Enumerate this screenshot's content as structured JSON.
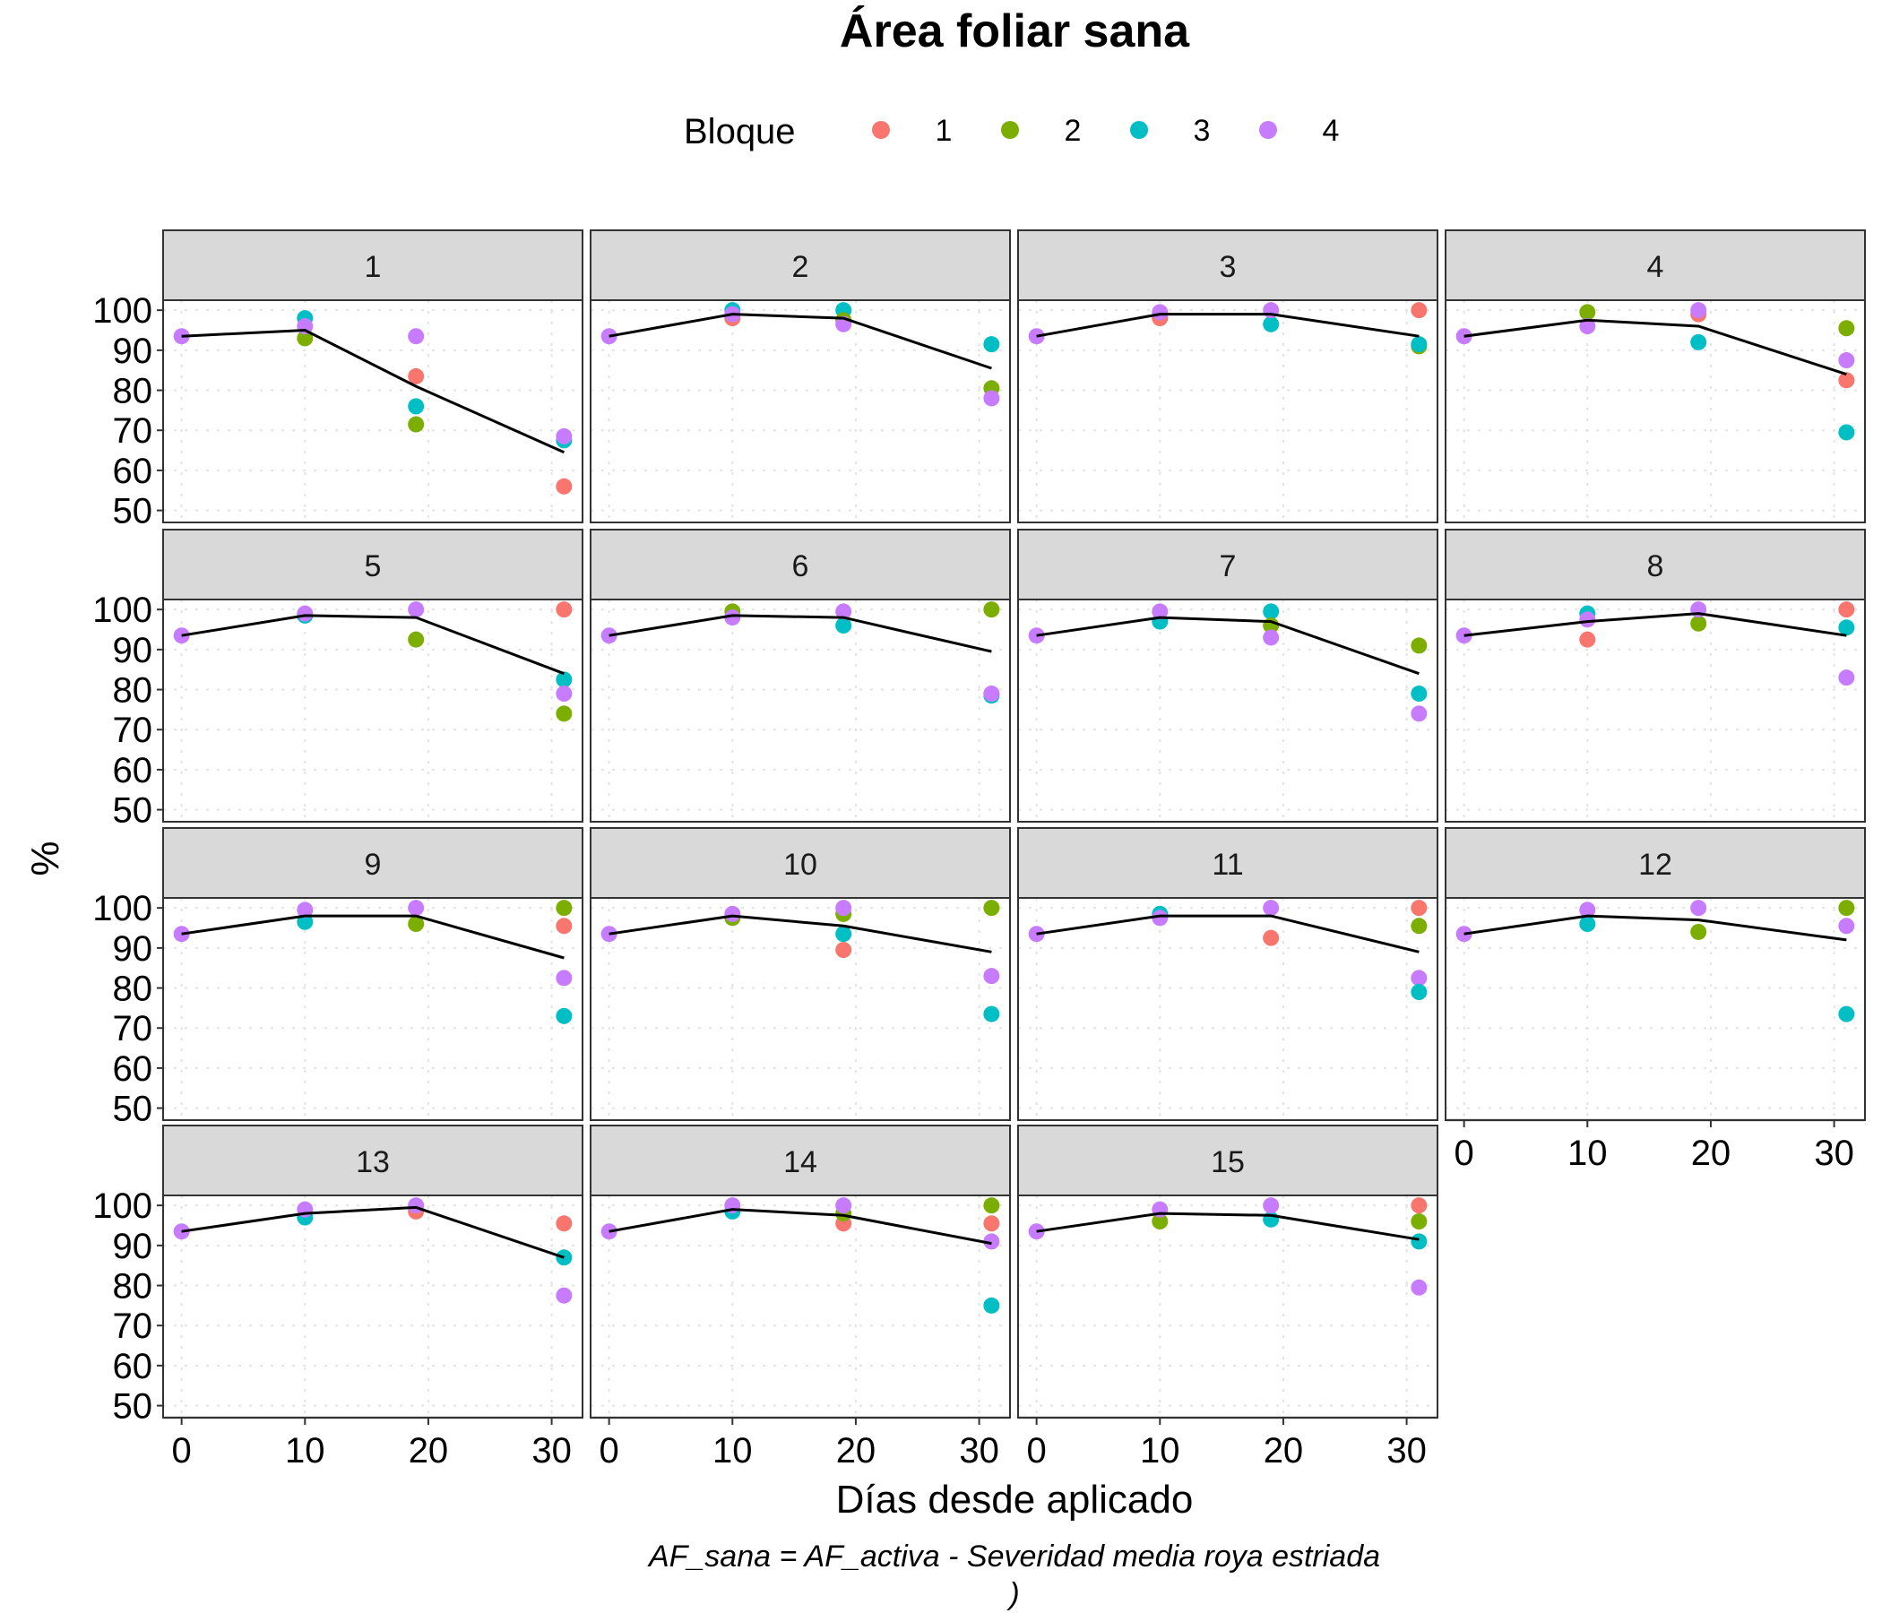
{
  "chart_data": {
    "type": "scatter",
    "title": "Área foliar sana",
    "xlabel": "Días desde aplicado",
    "ylabel": "%",
    "caption_lines": [
      "AF_sana = AF_activa - Severidad media roya estriada",
      ")"
    ],
    "legend": {
      "title": "Bloque",
      "position": "top",
      "entries": [
        {
          "label": "1",
          "color": "#F8766D"
        },
        {
          "label": "2",
          "color": "#7CAE00"
        },
        {
          "label": "3",
          "color": "#00BFC4"
        },
        {
          "label": "4",
          "color": "#C77CFF"
        }
      ]
    },
    "xlim": [
      -1.5,
      32.5
    ],
    "ylim": [
      47,
      102.5
    ],
    "x_ticks": [
      0,
      10,
      20,
      30
    ],
    "y_ticks": [
      50,
      60,
      70,
      80,
      90,
      100
    ],
    "grid": true,
    "trend_line": "mean",
    "facets": [
      {
        "label": "1",
        "points": [
          [
            0,
            93.5,
            4
          ],
          [
            10,
            98,
            3
          ],
          [
            10,
            93,
            2
          ],
          [
            10,
            96,
            4
          ],
          [
            19,
            83.5,
            1
          ],
          [
            19,
            76,
            3
          ],
          [
            19,
            71.5,
            2
          ],
          [
            19,
            93.5,
            4
          ],
          [
            31,
            56,
            1
          ],
          [
            31,
            67.5,
            3
          ],
          [
            31,
            68.5,
            4
          ]
        ],
        "mean": [
          [
            0,
            93.5
          ],
          [
            10,
            95
          ],
          [
            19,
            81
          ],
          [
            31,
            64.5
          ]
        ]
      },
      {
        "label": "2",
        "points": [
          [
            0,
            93.5,
            4
          ],
          [
            10,
            98,
            1
          ],
          [
            10,
            100,
            3
          ],
          [
            10,
            99,
            4
          ],
          [
            19,
            100,
            3
          ],
          [
            19,
            97.5,
            2
          ],
          [
            19,
            96.5,
            4
          ],
          [
            31,
            80.5,
            2
          ],
          [
            31,
            91.5,
            3
          ],
          [
            31,
            78,
            4
          ]
        ],
        "mean": [
          [
            0,
            93.5
          ],
          [
            10,
            99
          ],
          [
            19,
            98
          ],
          [
            31,
            85.5
          ]
        ]
      },
      {
        "label": "3",
        "points": [
          [
            0,
            93.5,
            4
          ],
          [
            10,
            98,
            1
          ],
          [
            10,
            99.5,
            4
          ],
          [
            19,
            96.5,
            3
          ],
          [
            19,
            100,
            4
          ],
          [
            31,
            100,
            1
          ],
          [
            31,
            91,
            2
          ],
          [
            31,
            91.5,
            3
          ]
        ],
        "mean": [
          [
            0,
            93.5
          ],
          [
            10,
            99
          ],
          [
            19,
            99
          ],
          [
            31,
            93.5
          ]
        ]
      },
      {
        "label": "4",
        "points": [
          [
            0,
            93.5,
            4
          ],
          [
            10,
            99.5,
            2
          ],
          [
            10,
            96,
            4
          ],
          [
            19,
            92,
            3
          ],
          [
            19,
            99,
            1
          ],
          [
            19,
            100,
            4
          ],
          [
            31,
            95.5,
            2
          ],
          [
            31,
            82.5,
            1
          ],
          [
            31,
            69.5,
            3
          ],
          [
            31,
            87.5,
            4
          ]
        ],
        "mean": [
          [
            0,
            93.5
          ],
          [
            10,
            97.5
          ],
          [
            19,
            96
          ],
          [
            31,
            84
          ]
        ]
      },
      {
        "label": "5",
        "points": [
          [
            0,
            93.5,
            4
          ],
          [
            10,
            98.5,
            3
          ],
          [
            10,
            99,
            4
          ],
          [
            19,
            92.5,
            2
          ],
          [
            19,
            100,
            4
          ],
          [
            31,
            100,
            1
          ],
          [
            31,
            82.5,
            3
          ],
          [
            31,
            79,
            4
          ],
          [
            31,
            74,
            2
          ]
        ],
        "mean": [
          [
            0,
            93.5
          ],
          [
            10,
            98.5
          ],
          [
            19,
            98
          ],
          [
            31,
            84
          ]
        ]
      },
      {
        "label": "6",
        "points": [
          [
            0,
            93.5,
            4
          ],
          [
            10,
            99.5,
            2
          ],
          [
            10,
            98,
            4
          ],
          [
            19,
            96,
            3
          ],
          [
            19,
            99.5,
            4
          ],
          [
            31,
            100,
            2
          ],
          [
            31,
            78.5,
            3
          ],
          [
            31,
            79,
            4
          ]
        ],
        "mean": [
          [
            0,
            93.5
          ],
          [
            10,
            98.5
          ],
          [
            19,
            98
          ],
          [
            31,
            89.5
          ]
        ]
      },
      {
        "label": "7",
        "points": [
          [
            0,
            93.5,
            4
          ],
          [
            10,
            97,
            3
          ],
          [
            10,
            99.5,
            4
          ],
          [
            19,
            99.5,
            3
          ],
          [
            19,
            96,
            2
          ],
          [
            19,
            93,
            4
          ],
          [
            31,
            91,
            2
          ],
          [
            31,
            79,
            3
          ],
          [
            31,
            74,
            4
          ]
        ],
        "mean": [
          [
            0,
            93.5
          ],
          [
            10,
            98
          ],
          [
            19,
            97
          ],
          [
            31,
            84
          ]
        ]
      },
      {
        "label": "8",
        "points": [
          [
            0,
            93.5,
            4
          ],
          [
            10,
            92.5,
            1
          ],
          [
            10,
            99,
            3
          ],
          [
            10,
            97.5,
            4
          ],
          [
            19,
            96.5,
            2
          ],
          [
            19,
            100,
            4
          ],
          [
            31,
            100,
            1
          ],
          [
            31,
            95.5,
            3
          ],
          [
            31,
            83,
            4
          ]
        ],
        "mean": [
          [
            0,
            93.5
          ],
          [
            10,
            97
          ],
          [
            19,
            99
          ],
          [
            31,
            93.5
          ]
        ]
      },
      {
        "label": "9",
        "points": [
          [
            0,
            93.5,
            4
          ],
          [
            10,
            96.5,
            3
          ],
          [
            10,
            99.5,
            4
          ],
          [
            19,
            96,
            2
          ],
          [
            19,
            100,
            4
          ],
          [
            31,
            100,
            2
          ],
          [
            31,
            95.5,
            1
          ],
          [
            31,
            82.5,
            4
          ],
          [
            31,
            73,
            3
          ]
        ],
        "mean": [
          [
            0,
            93.5
          ],
          [
            10,
            98
          ],
          [
            19,
            98
          ],
          [
            31,
            87.5
          ]
        ]
      },
      {
        "label": "10",
        "points": [
          [
            0,
            93.5,
            4
          ],
          [
            10,
            97.5,
            2
          ],
          [
            10,
            98.5,
            4
          ],
          [
            19,
            89.5,
            1
          ],
          [
            19,
            93.5,
            3
          ],
          [
            19,
            98.5,
            2
          ],
          [
            19,
            100,
            4
          ],
          [
            31,
            100,
            2
          ],
          [
            31,
            83,
            4
          ],
          [
            31,
            73.5,
            3
          ]
        ],
        "mean": [
          [
            0,
            93.5
          ],
          [
            10,
            98
          ],
          [
            19,
            95.5
          ],
          [
            31,
            89
          ]
        ]
      },
      {
        "label": "11",
        "points": [
          [
            0,
            93.5,
            4
          ],
          [
            10,
            98.5,
            3
          ],
          [
            10,
            97.5,
            4
          ],
          [
            19,
            92.5,
            1
          ],
          [
            19,
            100,
            4
          ],
          [
            31,
            100,
            1
          ],
          [
            31,
            95.5,
            2
          ],
          [
            31,
            82.5,
            4
          ],
          [
            31,
            79,
            3
          ]
        ],
        "mean": [
          [
            0,
            93.5
          ],
          [
            10,
            98
          ],
          [
            19,
            98
          ],
          [
            31,
            89
          ]
        ]
      },
      {
        "label": "12",
        "points": [
          [
            0,
            93.5,
            4
          ],
          [
            10,
            96,
            3
          ],
          [
            10,
            99.5,
            4
          ],
          [
            19,
            94,
            2
          ],
          [
            19,
            100,
            4
          ],
          [
            31,
            100,
            2
          ],
          [
            31,
            95.5,
            4
          ],
          [
            31,
            73.5,
            3
          ]
        ],
        "mean": [
          [
            0,
            93.5
          ],
          [
            10,
            98
          ],
          [
            19,
            97
          ],
          [
            31,
            92
          ]
        ]
      },
      {
        "label": "13",
        "points": [
          [
            0,
            93.5,
            4
          ],
          [
            10,
            97,
            3
          ],
          [
            10,
            99,
            4
          ],
          [
            19,
            98.5,
            1
          ],
          [
            19,
            100,
            4
          ],
          [
            31,
            95.5,
            1
          ],
          [
            31,
            87,
            3
          ],
          [
            31,
            77.5,
            4
          ]
        ],
        "mean": [
          [
            0,
            93.5
          ],
          [
            10,
            98
          ],
          [
            19,
            99.5
          ],
          [
            31,
            87
          ]
        ]
      },
      {
        "label": "14",
        "points": [
          [
            0,
            93.5,
            4
          ],
          [
            10,
            98.5,
            3
          ],
          [
            10,
            100,
            4
          ],
          [
            19,
            95.5,
            1
          ],
          [
            19,
            98,
            2
          ],
          [
            19,
            100,
            4
          ],
          [
            31,
            100,
            2
          ],
          [
            31,
            95.5,
            1
          ],
          [
            31,
            91,
            4
          ],
          [
            31,
            75,
            3
          ]
        ],
        "mean": [
          [
            0,
            93.5
          ],
          [
            10,
            99
          ],
          [
            19,
            97.5
          ],
          [
            31,
            90.5
          ]
        ]
      },
      {
        "label": "15",
        "points": [
          [
            0,
            93.5,
            4
          ],
          [
            10,
            96,
            2
          ],
          [
            10,
            99,
            4
          ],
          [
            19,
            96.5,
            3
          ],
          [
            19,
            100,
            4
          ],
          [
            31,
            100,
            1
          ],
          [
            31,
            96,
            2
          ],
          [
            31,
            91,
            3
          ],
          [
            31,
            79.5,
            4
          ]
        ],
        "mean": [
          [
            0,
            93.5
          ],
          [
            10,
            98
          ],
          [
            19,
            97.5
          ],
          [
            31,
            91.5
          ]
        ]
      }
    ]
  }
}
